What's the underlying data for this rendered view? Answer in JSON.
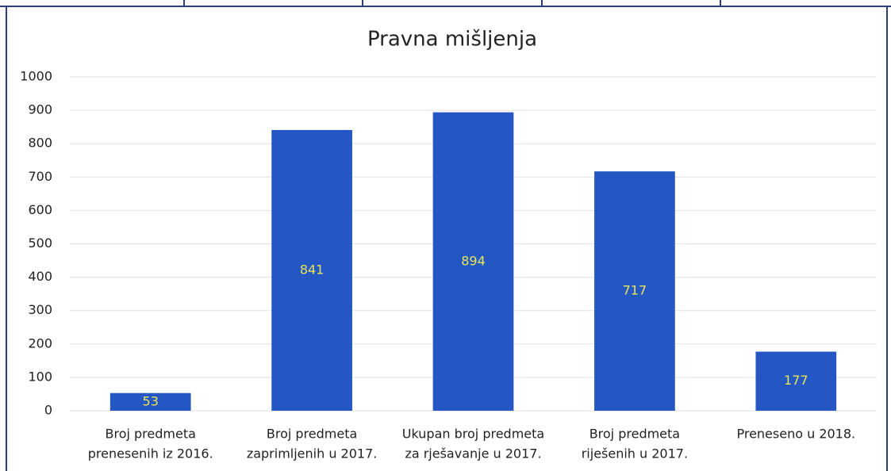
{
  "chart_data": {
    "type": "bar",
    "title": "Pravna mišljenja",
    "categories": [
      [
        "Broj predmeta",
        "prenesenih iz 2016."
      ],
      [
        "Broj predmeta",
        "zaprimljenih u 2017."
      ],
      [
        "Ukupan broj predmeta",
        "za rješavanje u 2017."
      ],
      [
        "Broj predmeta",
        "riješenih u 2017."
      ],
      [
        "Preneseno u 2018."
      ]
    ],
    "values": [
      53,
      841,
      894,
      717,
      177
    ],
    "color": "#2456c4",
    "ylim": [
      0,
      1000
    ],
    "yticks": [
      0,
      100,
      200,
      300,
      400,
      500,
      600,
      700,
      800,
      900,
      1000
    ],
    "grid": true
  }
}
